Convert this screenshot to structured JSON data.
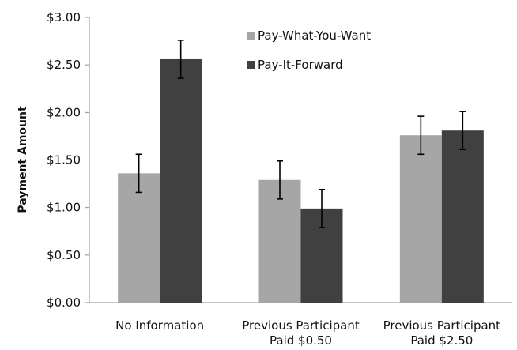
{
  "chart_data": {
    "type": "bar",
    "title": "",
    "xlabel": "",
    "ylabel": "Payment Amount",
    "ylim": [
      0,
      3
    ],
    "yticks": [
      0,
      0.5,
      1,
      1.5,
      2,
      2.5,
      3
    ],
    "ytick_labels": [
      "$0.00",
      "$0.50",
      "$1.00",
      "$1.50",
      "$2.00",
      "$2.50",
      "$3.00"
    ],
    "categories": [
      [
        "No Information"
      ],
      [
        "Previous Participant",
        "Paid $0.50"
      ],
      [
        "Previous Participant",
        "Paid $2.50"
      ]
    ],
    "series": [
      {
        "name": "Pay-What-You-Want",
        "color": "#a6a6a6",
        "values": [
          1.36,
          1.29,
          1.76
        ],
        "error": [
          0.2,
          0.2,
          0.2
        ]
      },
      {
        "name": "Pay-It-Forward",
        "color": "#404040",
        "values": [
          2.56,
          0.99,
          1.81
        ],
        "error": [
          0.2,
          0.2,
          0.2
        ]
      }
    ],
    "grid": false,
    "legend_position": "top-right"
  }
}
